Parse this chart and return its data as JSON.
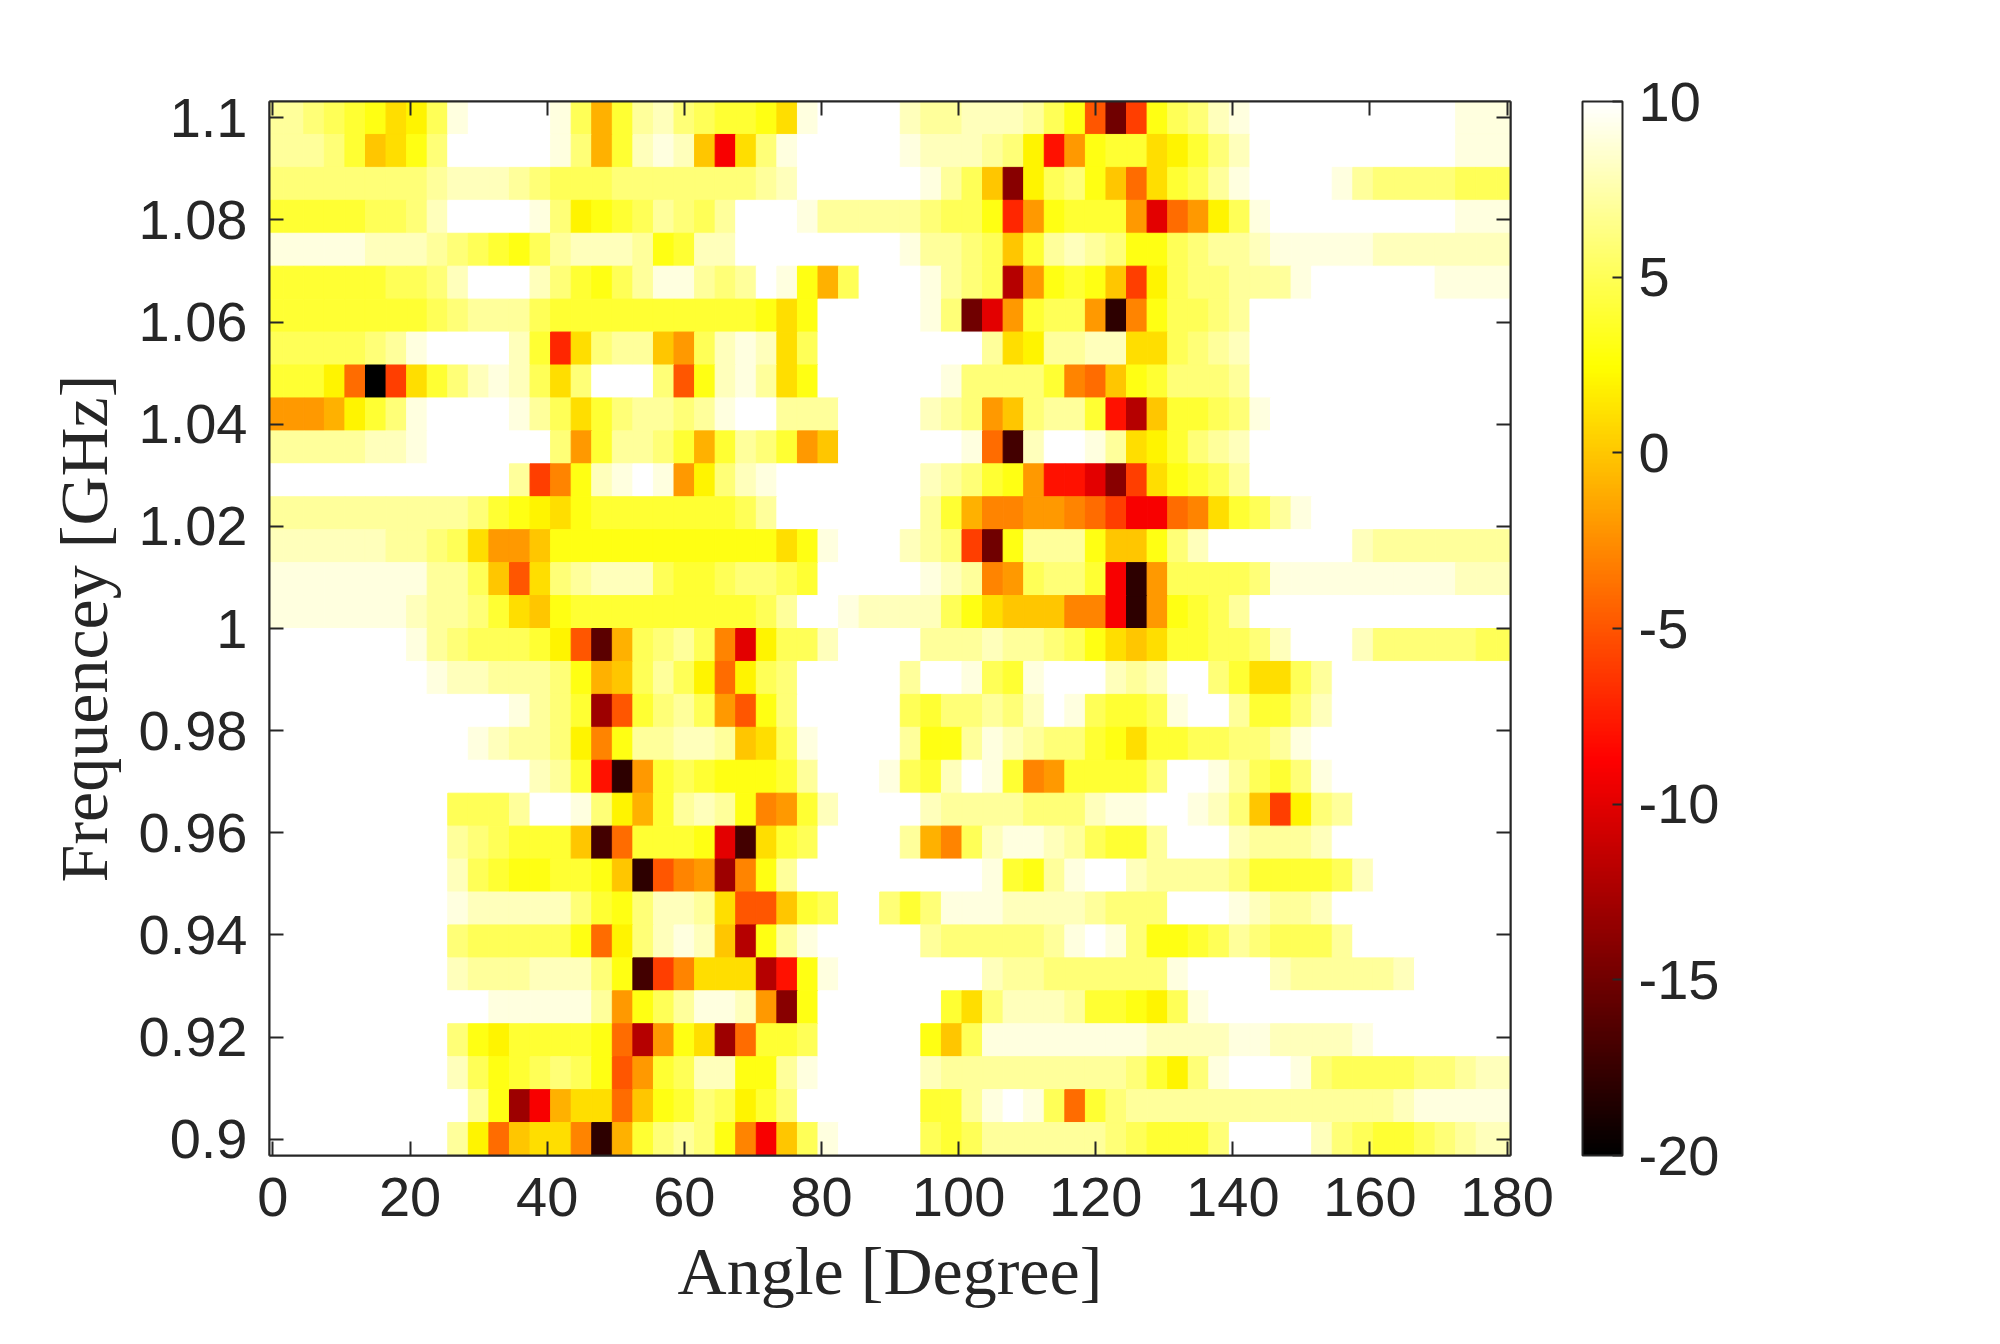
{
  "chart_data": {
    "type": "heatmap",
    "xlabel": "Angle [Degree]",
    "ylabel": "Frequencey [GHz]",
    "x": [
      0,
      3,
      6,
      9,
      12,
      15,
      18,
      21,
      24,
      27,
      30,
      33,
      36,
      39,
      42,
      45,
      48,
      51,
      54,
      57,
      60,
      63,
      66,
      69,
      72,
      75,
      78,
      81,
      84,
      87,
      90,
      93,
      96,
      99,
      102,
      105,
      108,
      111,
      114,
      117,
      120,
      123,
      126,
      129,
      132,
      135,
      138,
      141,
      144,
      147,
      150,
      153,
      156,
      159,
      162,
      165,
      168,
      171,
      174,
      177,
      180
    ],
    "xlim": [
      -0.5,
      180.5
    ],
    "xticks": [
      0,
      20,
      40,
      60,
      80,
      100,
      120,
      140,
      160,
      180
    ],
    "ylim": [
      0.8968,
      1.1032
    ],
    "yticks": [
      0.9,
      0.92,
      0.94,
      0.96,
      0.98,
      1,
      1.02,
      1.04,
      1.06,
      1.08,
      1.1
    ],
    "clim": [
      -20,
      10
    ],
    "cticks": [
      -20,
      -15,
      -10,
      -5,
      0,
      5,
      10
    ],
    "cells": [
      [
        7,
        7,
        6,
        5,
        4,
        3,
        1,
        2,
        5,
        9,
        10,
        10,
        10,
        10,
        9,
        5,
        -1,
        4,
        7,
        8,
        6,
        5,
        4,
        4,
        3,
        1,
        9,
        10,
        10,
        10,
        10,
        8,
        7,
        7,
        8,
        8,
        8,
        7,
        5,
        3,
        -5,
        -15,
        -6,
        3,
        5,
        6,
        8,
        9,
        10,
        10,
        10,
        10,
        10,
        10,
        10,
        10,
        10,
        10,
        9,
        9,
        9
      ],
      [
        7,
        7,
        7,
        6,
        4,
        0,
        1,
        3,
        6,
        10,
        10,
        10,
        10,
        10,
        9,
        6,
        -1,
        4,
        8,
        9,
        8,
        0,
        -9,
        1,
        6,
        9,
        10,
        10,
        10,
        10,
        10,
        9,
        8,
        8,
        8,
        7,
        6,
        2,
        -8,
        -2,
        3,
        4,
        4,
        1,
        2,
        4,
        6,
        8,
        10,
        10,
        10,
        10,
        10,
        10,
        10,
        10,
        10,
        10,
        9,
        9,
        9
      ],
      [
        6,
        6,
        6,
        6,
        6,
        6,
        6,
        6,
        7,
        8,
        8,
        8,
        7,
        6,
        5,
        5,
        5,
        6,
        6,
        6,
        6,
        6,
        6,
        6,
        7,
        8,
        10,
        10,
        10,
        10,
        10,
        10,
        9,
        7,
        5,
        0,
        -14,
        2,
        5,
        6,
        3,
        0,
        -4,
        1,
        4,
        5,
        7,
        9,
        10,
        10,
        10,
        10,
        9,
        7,
        6,
        6,
        6,
        6,
        5,
        5,
        5
      ],
      [
        4,
        4,
        4,
        4,
        4,
        5,
        5,
        6,
        8,
        10,
        10,
        10,
        10,
        9,
        6,
        2,
        3,
        4,
        5,
        7,
        6,
        5,
        7,
        10,
        10,
        10,
        9,
        7,
        7,
        7,
        7,
        7,
        6,
        5,
        5,
        3,
        -7,
        -2,
        3,
        4,
        4,
        4,
        -2,
        -10,
        -4,
        -2,
        2,
        5,
        9,
        10,
        10,
        10,
        10,
        10,
        10,
        10,
        10,
        10,
        9,
        9,
        9
      ],
      [
        9,
        9,
        9,
        9,
        9,
        8,
        8,
        8,
        7,
        6,
        5,
        4,
        3,
        5,
        7,
        8,
        8,
        8,
        7,
        3,
        4,
        8,
        8,
        10,
        10,
        10,
        10,
        10,
        10,
        10,
        10,
        9,
        7,
        7,
        6,
        5,
        0,
        4,
        7,
        8,
        7,
        6,
        3,
        3,
        5,
        6,
        7,
        7,
        8,
        9,
        9,
        9,
        9,
        9,
        8,
        8,
        8,
        8,
        8,
        8,
        8
      ],
      [
        4,
        4,
        4,
        4,
        4,
        4,
        5,
        5,
        6,
        8,
        10,
        10,
        10,
        8,
        6,
        4,
        3,
        5,
        7,
        9,
        9,
        7,
        6,
        7,
        10,
        9,
        3,
        -1,
        5,
        10,
        10,
        10,
        9,
        7,
        6,
        5,
        -12,
        -2,
        3,
        4,
        3,
        0,
        -6,
        2,
        5,
        6,
        6,
        7,
        7,
        7,
        9,
        10,
        10,
        10,
        10,
        10,
        10,
        9,
        9,
        9,
        9
      ],
      [
        4,
        4,
        4,
        4,
        4,
        4,
        4,
        4,
        5,
        6,
        7,
        7,
        7,
        5,
        4,
        4,
        4,
        4,
        4,
        4,
        4,
        4,
        4,
        4,
        3,
        1,
        3,
        10,
        10,
        10,
        10,
        10,
        9,
        6,
        -15,
        -10,
        -2,
        4,
        5,
        5,
        -2,
        -18,
        -3,
        3,
        5,
        5,
        6,
        7,
        10,
        10,
        10,
        10,
        10,
        10,
        10,
        10,
        10,
        10,
        10,
        10,
        10
      ],
      [
        5,
        5,
        5,
        5,
        5,
        6,
        7,
        9,
        10,
        10,
        10,
        10,
        8,
        4,
        -7,
        1,
        6,
        7,
        7,
        0,
        -2,
        5,
        8,
        9,
        8,
        1,
        5,
        10,
        10,
        10,
        10,
        10,
        10,
        10,
        10,
        7,
        1,
        2,
        7,
        7,
        8,
        8,
        1,
        1,
        5,
        6,
        7,
        8,
        10,
        10,
        10,
        10,
        10,
        10,
        10,
        10,
        10,
        10,
        10,
        10,
        10
      ],
      [
        4,
        4,
        4,
        2,
        -4,
        -20,
        -6,
        1,
        4,
        6,
        8,
        9,
        8,
        5,
        1,
        6,
        10,
        10,
        10,
        6,
        -5,
        3,
        8,
        9,
        7,
        1,
        3,
        10,
        10,
        10,
        10,
        10,
        10,
        9,
        6,
        6,
        6,
        6,
        4,
        -3,
        -4,
        0,
        3,
        4,
        6,
        6,
        6,
        7,
        10,
        10,
        10,
        10,
        10,
        10,
        10,
        10,
        10,
        10,
        10,
        10,
        10
      ],
      [
        -2,
        -2,
        -2,
        -1,
        2,
        4,
        6,
        9,
        10,
        10,
        10,
        10,
        9,
        7,
        5,
        1,
        4,
        6,
        7,
        7,
        6,
        7,
        9,
        10,
        10,
        7,
        7,
        7,
        10,
        10,
        10,
        10,
        8,
        7,
        6,
        -2,
        0,
        6,
        7,
        7,
        4,
        -8,
        -12,
        0,
        4,
        4,
        5,
        6,
        9,
        10,
        10,
        10,
        10,
        10,
        10,
        10,
        10,
        10,
        10,
        10,
        10
      ],
      [
        7,
        7,
        7,
        7,
        7,
        8,
        8,
        9,
        10,
        10,
        10,
        10,
        10,
        10,
        6,
        -2,
        4,
        7,
        7,
        6,
        4,
        -1,
        4,
        7,
        6,
        4,
        -2,
        0,
        10,
        10,
        10,
        10,
        10,
        10,
        9,
        -4,
        -17,
        8,
        10,
        10,
        9,
        7,
        1,
        2,
        4,
        6,
        7,
        8,
        10,
        10,
        10,
        10,
        10,
        10,
        10,
        10,
        10,
        10,
        10,
        10,
        10
      ],
      [
        10,
        10,
        10,
        10,
        10,
        10,
        10,
        10,
        10,
        10,
        10,
        10,
        7,
        -6,
        -3,
        3,
        8,
        9,
        10,
        9,
        -2,
        2,
        6,
        8,
        9,
        10,
        10,
        10,
        10,
        10,
        10,
        10,
        8,
        7,
        6,
        4,
        3,
        -2,
        -8,
        -8,
        -10,
        -14,
        -6,
        1,
        3,
        4,
        5,
        7,
        10,
        10,
        10,
        10,
        10,
        10,
        10,
        10,
        10,
        10,
        10,
        10,
        10
      ],
      [
        7,
        7,
        7,
        7,
        7,
        7,
        7,
        7,
        7,
        7,
        6,
        4,
        3,
        2,
        1,
        3,
        4,
        4,
        4,
        4,
        4,
        4,
        4,
        5,
        7,
        10,
        10,
        10,
        10,
        10,
        10,
        10,
        7,
        4,
        -1,
        -3,
        -3,
        -2,
        -2,
        -3,
        -4,
        -6,
        -9,
        -9,
        -4,
        -3,
        1,
        4,
        5,
        7,
        9,
        10,
        10,
        10,
        10,
        10,
        10,
        10,
        10,
        10,
        10
      ],
      [
        8,
        8,
        8,
        8,
        8,
        8,
        7,
        7,
        6,
        5,
        1,
        -2,
        -2,
        0,
        3,
        3,
        3,
        3,
        3,
        3,
        3,
        3,
        3,
        3,
        3,
        1,
        3,
        9,
        10,
        10,
        10,
        8,
        7,
        6,
        -6,
        -15,
        3,
        7,
        7,
        7,
        3,
        0,
        0,
        3,
        6,
        8,
        10,
        10,
        10,
        10,
        10,
        10,
        10,
        8,
        7,
        7,
        7,
        7,
        7,
        7,
        7
      ],
      [
        9,
        9,
        9,
        9,
        9,
        9,
        9,
        9,
        7,
        7,
        5,
        0,
        -5,
        1,
        6,
        7,
        8,
        8,
        8,
        5,
        4,
        4,
        5,
        6,
        6,
        5,
        4,
        10,
        10,
        10,
        10,
        10,
        9,
        8,
        7,
        -3,
        -2,
        5,
        6,
        6,
        4,
        -9,
        -18,
        -2,
        5,
        5,
        5,
        5,
        6,
        9,
        9,
        9,
        9,
        9,
        9,
        9,
        9,
        9,
        8,
        8,
        8
      ],
      [
        9,
        9,
        9,
        9,
        9,
        9,
        9,
        8,
        7,
        7,
        6,
        4,
        1,
        0,
        3,
        4,
        4,
        4,
        4,
        4,
        4,
        4,
        4,
        4,
        5,
        7,
        10,
        10,
        9,
        8,
        8,
        8,
        8,
        5,
        3,
        1,
        0,
        0,
        0,
        -3,
        -3,
        -9,
        -18,
        -2,
        3,
        4,
        5,
        7,
        10,
        10,
        10,
        10,
        10,
        10,
        10,
        10,
        10,
        10,
        10,
        10,
        10
      ],
      [
        10,
        10,
        10,
        10,
        10,
        10,
        10,
        9,
        7,
        6,
        5,
        5,
        5,
        4,
        2,
        -5,
        -16,
        -1,
        5,
        6,
        7,
        5,
        -3,
        -10,
        2,
        5,
        5,
        8,
        10,
        10,
        10,
        10,
        7,
        7,
        7,
        8,
        7,
        7,
        6,
        5,
        3,
        1,
        0,
        1,
        4,
        4,
        5,
        5,
        6,
        8,
        10,
        10,
        10,
        8,
        6,
        6,
        6,
        6,
        6,
        5,
        5
      ],
      [
        10,
        10,
        10,
        10,
        10,
        10,
        10,
        10,
        9,
        8,
        8,
        7,
        7,
        7,
        6,
        3,
        -1,
        0,
        5,
        7,
        5,
        2,
        -4,
        2,
        5,
        6,
        10,
        10,
        10,
        10,
        10,
        7,
        10,
        10,
        9,
        5,
        4,
        9,
        10,
        10,
        10,
        8,
        7,
        8,
        10,
        10,
        6,
        4,
        1,
        1,
        5,
        7,
        10,
        10,
        10,
        10,
        10,
        10,
        10,
        10,
        10
      ],
      [
        10,
        10,
        10,
        10,
        10,
        10,
        10,
        10,
        10,
        10,
        10,
        10,
        9,
        7,
        6,
        4,
        -13,
        -5,
        4,
        6,
        7,
        5,
        -2,
        -5,
        3,
        6,
        10,
        10,
        10,
        10,
        10,
        5,
        4,
        6,
        6,
        7,
        6,
        8,
        10,
        9,
        5,
        4,
        4,
        5,
        9,
        10,
        10,
        7,
        4,
        4,
        6,
        8,
        10,
        10,
        10,
        10,
        10,
        10,
        10,
        10,
        10
      ],
      [
        10,
        10,
        10,
        10,
        10,
        10,
        10,
        10,
        10,
        10,
        9,
        8,
        7,
        7,
        6,
        2,
        -3,
        3,
        7,
        7,
        8,
        8,
        7,
        0,
        1,
        5,
        9,
        10,
        10,
        10,
        10,
        7,
        3,
        3,
        7,
        9,
        8,
        7,
        6,
        6,
        4,
        3,
        1,
        4,
        4,
        5,
        5,
        6,
        6,
        7,
        9,
        10,
        10,
        10,
        10,
        10,
        10,
        10,
        10,
        10,
        10
      ],
      [
        10,
        10,
        10,
        10,
        10,
        10,
        10,
        10,
        10,
        10,
        10,
        10,
        10,
        8,
        7,
        4,
        -8,
        -18,
        -2,
        4,
        5,
        4,
        3,
        3,
        3,
        4,
        7,
        10,
        10,
        10,
        9,
        5,
        4,
        8,
        10,
        9,
        4,
        -3,
        -2,
        4,
        4,
        4,
        4,
        6,
        10,
        10,
        9,
        7,
        5,
        4,
        6,
        9,
        10,
        10,
        10,
        10,
        10,
        10,
        10,
        10,
        10
      ],
      [
        10,
        10,
        10,
        10,
        10,
        10,
        10,
        10,
        10,
        5,
        5,
        5,
        7,
        10,
        10,
        9,
        6,
        2,
        -1,
        4,
        7,
        8,
        7,
        3,
        -3,
        -2,
        4,
        8,
        10,
        10,
        10,
        10,
        8,
        7,
        7,
        7,
        7,
        6,
        6,
        6,
        8,
        9,
        9,
        10,
        10,
        9,
        8,
        6,
        0,
        -6,
        2,
        6,
        7,
        10,
        10,
        10,
        10,
        10,
        10,
        10,
        10
      ],
      [
        10,
        10,
        10,
        10,
        10,
        10,
        10,
        10,
        10,
        7,
        6,
        5,
        4,
        4,
        4,
        0,
        -17,
        -4,
        4,
        4,
        4,
        3,
        -10,
        -17,
        1,
        4,
        5,
        10,
        10,
        10,
        10,
        7,
        -1,
        -3,
        5,
        8,
        9,
        9,
        8,
        7,
        5,
        4,
        4,
        7,
        10,
        10,
        10,
        8,
        7,
        7,
        7,
        8,
        10,
        10,
        10,
        10,
        10,
        10,
        10,
        10,
        10
      ],
      [
        10,
        10,
        10,
        10,
        10,
        10,
        10,
        10,
        10,
        8,
        5,
        4,
        3,
        3,
        4,
        4,
        3,
        0,
        -18,
        -5,
        -3,
        -2,
        -13,
        -3,
        3,
        7,
        10,
        10,
        10,
        10,
        10,
        10,
        10,
        10,
        10,
        9,
        4,
        3,
        7,
        9,
        10,
        10,
        8,
        7,
        7,
        7,
        7,
        6,
        4,
        4,
        4,
        4,
        5,
        8,
        10,
        10,
        10,
        10,
        10,
        10,
        10
      ],
      [
        10,
        10,
        10,
        10,
        10,
        10,
        10,
        10,
        10,
        9,
        8,
        8,
        8,
        8,
        8,
        6,
        4,
        3,
        6,
        8,
        8,
        7,
        1,
        -5,
        -5,
        0,
        4,
        5,
        10,
        10,
        6,
        4,
        6,
        9,
        9,
        9,
        8,
        8,
        8,
        8,
        7,
        6,
        6,
        6,
        10,
        10,
        10,
        9,
        8,
        7,
        7,
        8,
        10,
        10,
        10,
        10,
        10,
        10,
        10,
        10,
        10
      ],
      [
        10,
        10,
        10,
        10,
        10,
        10,
        10,
        10,
        10,
        6,
        5,
        5,
        5,
        5,
        5,
        3,
        -4,
        2,
        6,
        8,
        9,
        8,
        0,
        -12,
        3,
        7,
        9,
        10,
        10,
        10,
        10,
        10,
        7,
        6,
        6,
        6,
        6,
        6,
        7,
        9,
        10,
        9,
        6,
        3,
        3,
        4,
        5,
        7,
        6,
        5,
        5,
        5,
        7,
        10,
        10,
        10,
        10,
        10,
        10,
        10,
        10
      ],
      [
        10,
        10,
        10,
        10,
        10,
        10,
        10,
        10,
        10,
        8,
        7,
        7,
        7,
        8,
        8,
        8,
        6,
        3,
        -17,
        -6,
        -3,
        1,
        1,
        1,
        -12,
        -8,
        3,
        9,
        10,
        10,
        10,
        10,
        10,
        10,
        10,
        8,
        7,
        7,
        6,
        6,
        6,
        6,
        6,
        6,
        9,
        10,
        10,
        10,
        10,
        8,
        7,
        7,
        7,
        7,
        7,
        8,
        10,
        10,
        10,
        10,
        10
      ],
      [
        10,
        10,
        10,
        10,
        10,
        10,
        10,
        10,
        10,
        10,
        10,
        9,
        9,
        9,
        9,
        9,
        7,
        -2,
        3,
        5,
        7,
        9,
        9,
        8,
        -2,
        -14,
        3,
        10,
        10,
        10,
        10,
        10,
        10,
        4,
        1,
        6,
        8,
        8,
        8,
        7,
        4,
        4,
        3,
        2,
        5,
        9,
        10,
        10,
        10,
        10,
        10,
        10,
        10,
        10,
        10,
        10,
        10,
        10,
        10,
        10,
        10
      ],
      [
        10,
        10,
        10,
        10,
        10,
        10,
        10,
        10,
        10,
        6,
        3,
        2,
        4,
        4,
        4,
        4,
        3,
        -4,
        -12,
        -2,
        3,
        1,
        -13,
        -4,
        4,
        4,
        5,
        10,
        10,
        10,
        10,
        10,
        3,
        0,
        5,
        9,
        9,
        9,
        9,
        9,
        9,
        9,
        9,
        8,
        8,
        8,
        8,
        9,
        9,
        8,
        8,
        8,
        8,
        9,
        10,
        10,
        10,
        10,
        10,
        10,
        10
      ],
      [
        10,
        10,
        10,
        10,
        10,
        10,
        10,
        10,
        10,
        8,
        5,
        3,
        4,
        5,
        6,
        5,
        3,
        -5,
        -2,
        4,
        5,
        8,
        8,
        3,
        3,
        7,
        9,
        10,
        10,
        10,
        10,
        10,
        8,
        7,
        7,
        7,
        7,
        7,
        7,
        7,
        7,
        7,
        6,
        4,
        2,
        6,
        9,
        10,
        10,
        10,
        9,
        6,
        5,
        5,
        5,
        5,
        6,
        6,
        7,
        8,
        8
      ],
      [
        10,
        10,
        10,
        10,
        10,
        10,
        10,
        10,
        10,
        10,
        7,
        3,
        -13,
        -9,
        -1,
        1,
        1,
        -4,
        0,
        3,
        4,
        6,
        5,
        2,
        4,
        6,
        10,
        10,
        10,
        10,
        10,
        10,
        4,
        4,
        7,
        9,
        10,
        9,
        5,
        -4,
        4,
        6,
        7,
        7,
        7,
        7,
        7,
        7,
        7,
        7,
        7,
        7,
        7,
        7,
        7,
        8,
        9,
        9,
        9,
        9,
        9
      ],
      [
        10,
        10,
        10,
        10,
        10,
        10,
        10,
        10,
        10,
        7,
        2,
        -4,
        0,
        1,
        1,
        -3,
        -18,
        -1,
        4,
        6,
        7,
        6,
        3,
        -3,
        -9,
        0,
        5,
        9,
        10,
        10,
        10,
        10,
        5,
        4,
        5,
        7,
        7,
        7,
        7,
        7,
        7,
        6,
        5,
        4,
        4,
        4,
        6,
        10,
        10,
        10,
        10,
        8,
        6,
        5,
        4,
        4,
        5,
        6,
        7,
        8,
        8
      ]
    ]
  }
}
